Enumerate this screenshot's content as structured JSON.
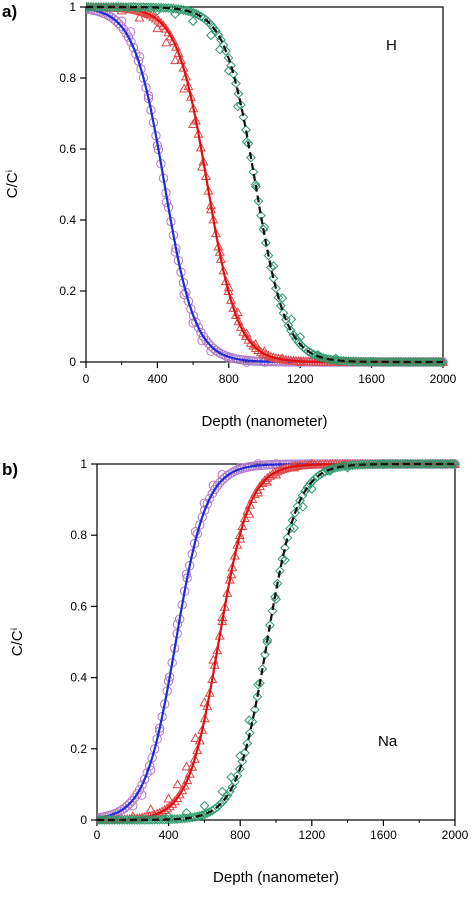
{
  "figure": {
    "panels": [
      {
        "letter": "a)"
      },
      {
        "letter": "b)"
      }
    ]
  },
  "chart_data": [
    {
      "type": "scatter",
      "panel": "a)",
      "annotation": "H",
      "xlabel": "Depth (nanometer)",
      "ylabel": "C/Cⁱ",
      "xlim": [
        0,
        2000
      ],
      "ylim": [
        0,
        1
      ],
      "xticks": [
        0,
        400,
        800,
        1200,
        1600,
        2000
      ],
      "yticks": [
        0,
        0.2,
        0.4,
        0.6,
        0.8,
        1
      ],
      "x_tick_labels": [
        "0",
        "400",
        "800",
        "1200",
        "1600",
        "2000"
      ],
      "y_tick_labels": [
        "0",
        "0.2",
        "0.4",
        "0.6",
        "0.8",
        "1"
      ],
      "grid": false,
      "direction": "decreasing",
      "series": [
        {
          "marker": "circle",
          "marker_color": "#b07ac8",
          "line_color": "#1f2bd6",
          "line_style": "solid",
          "fit_center": 440,
          "fit_width": 85,
          "x": [
            0,
            100,
            200,
            250,
            300,
            350,
            400,
            450,
            500,
            550,
            600,
            650,
            700,
            800,
            900,
            1000,
            1200,
            1600,
            2000
          ],
          "y": [
            1.0,
            0.99,
            0.96,
            0.93,
            0.86,
            0.75,
            0.61,
            0.45,
            0.31,
            0.19,
            0.11,
            0.06,
            0.03,
            0.01,
            0.0,
            0.0,
            0.0,
            0.0,
            0.0
          ]
        },
        {
          "marker": "triangle",
          "marker_color": "#e04848",
          "line_color": "#e01010",
          "line_style": "solid",
          "fit_center": 680,
          "fit_width": 85,
          "x": [
            0,
            200,
            300,
            400,
            450,
            500,
            550,
            600,
            650,
            700,
            750,
            800,
            850,
            900,
            950,
            1000,
            1100,
            1200,
            1600,
            2000
          ],
          "y": [
            1.0,
            0.99,
            0.97,
            0.94,
            0.9,
            0.85,
            0.77,
            0.67,
            0.55,
            0.43,
            0.31,
            0.21,
            0.14,
            0.08,
            0.05,
            0.03,
            0.01,
            0.0,
            0.0,
            0.0
          ]
        },
        {
          "marker": "diamond",
          "marker_color": "#2e9a6c",
          "line_color": "#111111",
          "line_style": "dashed",
          "fit_center": 950,
          "fit_width": 85,
          "x": [
            0,
            400,
            500,
            600,
            700,
            750,
            800,
            850,
            900,
            950,
            1000,
            1050,
            1100,
            1150,
            1200,
            1300,
            1400,
            1600,
            2000
          ],
          "y": [
            1.0,
            0.99,
            0.98,
            0.96,
            0.92,
            0.88,
            0.82,
            0.72,
            0.62,
            0.5,
            0.38,
            0.27,
            0.18,
            0.12,
            0.07,
            0.02,
            0.01,
            0.0,
            0.0
          ]
        }
      ]
    },
    {
      "type": "scatter",
      "panel": "b)",
      "annotation": "Na",
      "xlabel": "Depth (nanometer)",
      "ylabel": "C/Cⁱ",
      "xlim": [
        0,
        2000
      ],
      "ylim": [
        0,
        1
      ],
      "xticks": [
        0,
        400,
        800,
        1200,
        1600,
        2000
      ],
      "yticks": [
        0,
        0.2,
        0.4,
        0.6,
        0.8,
        1
      ],
      "x_tick_labels": [
        "0",
        "400",
        "800",
        "1200",
        "1600",
        "2000"
      ],
      "y_tick_labels": [
        "0",
        "0.2",
        "0.4",
        "0.6",
        "0.8",
        "1"
      ],
      "grid": false,
      "direction": "increasing",
      "series": [
        {
          "marker": "circle",
          "marker_color": "#b07ac8",
          "line_color": "#1f2bd6",
          "line_style": "solid",
          "fit_center": 440,
          "fit_width": 85,
          "x": [
            0,
            100,
            200,
            250,
            300,
            350,
            400,
            450,
            500,
            550,
            600,
            650,
            700,
            800,
            900,
            1000,
            1200,
            1600,
            2000
          ],
          "y": [
            0.0,
            0.01,
            0.04,
            0.07,
            0.14,
            0.25,
            0.39,
            0.55,
            0.69,
            0.81,
            0.89,
            0.94,
            0.97,
            0.99,
            1.0,
            1.0,
            1.0,
            1.0,
            1.0
          ]
        },
        {
          "marker": "triangle",
          "marker_color": "#e04848",
          "line_color": "#e01010",
          "line_style": "solid",
          "fit_center": 680,
          "fit_width": 85,
          "x": [
            0,
            200,
            300,
            400,
            450,
            500,
            550,
            600,
            650,
            700,
            750,
            800,
            850,
            900,
            950,
            1000,
            1100,
            1200,
            1600,
            2000
          ],
          "y": [
            0.0,
            0.01,
            0.03,
            0.06,
            0.1,
            0.15,
            0.23,
            0.33,
            0.45,
            0.57,
            0.69,
            0.79,
            0.86,
            0.92,
            0.95,
            0.97,
            0.99,
            1.0,
            1.0,
            1.0
          ]
        },
        {
          "marker": "diamond",
          "marker_color": "#2e9a6c",
          "line_color": "#111111",
          "line_style": "dashed",
          "fit_center": 950,
          "fit_width": 85,
          "x": [
            0,
            400,
            500,
            600,
            700,
            750,
            800,
            850,
            900,
            950,
            1000,
            1050,
            1100,
            1150,
            1200,
            1300,
            1400,
            1600,
            2000
          ],
          "y": [
            0.0,
            0.01,
            0.02,
            0.04,
            0.08,
            0.12,
            0.18,
            0.28,
            0.38,
            0.5,
            0.62,
            0.73,
            0.82,
            0.88,
            0.93,
            0.98,
            0.99,
            1.0,
            1.0
          ]
        }
      ]
    }
  ]
}
